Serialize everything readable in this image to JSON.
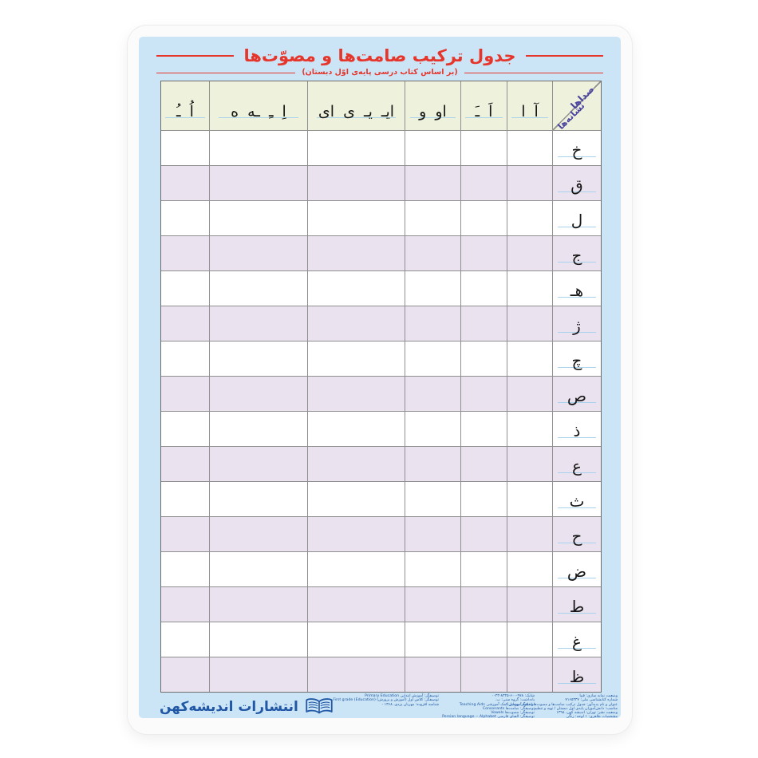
{
  "poster": {
    "title": "جدول ترکیب صامت‌ها و مصوّت‌ها",
    "subtitle": "(بر اساس کتاب درسی پایه‌ی اوّل دبستان)"
  },
  "table": {
    "corner": {
      "sounds": "صداها",
      "signs": "نشانه‌ها"
    },
    "vowel_headers": [
      "آ ا",
      "اَ ـَ",
      "او و",
      "ایـ یـ ی ای",
      "اِ ـِ ـه ه",
      "اُ ـُ"
    ],
    "consonants": [
      "خ",
      "ق",
      "ل",
      "ج",
      "هـ",
      "ژ",
      "چ",
      "ص",
      "ذ",
      "ع",
      "ث",
      "ح",
      "ض",
      "ط",
      "غ",
      "ظ"
    ]
  },
  "footer": {
    "catalog_right": [
      "وضعیت نمایه سازی: فیپا",
      "شماره کتابشناسی ملی: ۷۱۶۵۳۳۷",
      "عنوان و نام پدیدآور: جدول ترکیب صامت‌ها و مصوت‌ها (علاوه آموزشی)",
      "مناسب: دانش‌آموزان پایه‌ی اول دبستان / تهیه و تنظیم",
      "وضعیت نشر: تهران: اندیشه کهن، ۱۳۹۸",
      "مشخصات ظاهری: ۱ لوحه: رنگی"
    ],
    "catalog_middle": [
      "شابک: ۹۷۸-۶۰۰-۸۳۴۵-۲۳-۰",
      "یادداشت: گروه سنی: ب.",
      "توصیفگر: وسایل کمک آموزشی Teaching Aids",
      "توصیفگر: صامت‌ها Consonants",
      "توصیفگر: مصوت‌ها Vowels",
      "توصیفگر: الفبای فارسی Persian language -- Alphabet"
    ],
    "catalog_left": [
      "توصیفگر: آموزش ابتدایی Primary Education",
      "توصیفگر: کلاس اول (آموزش و پرورش) First grade (Education)",
      "شناسه افزوده: مهربان یزدی، ۱۳۶۸ -"
    ]
  },
  "publisher": {
    "name": "انتشارات اندیشه‌کهن",
    "icon": "open-book-icon"
  },
  "colors": {
    "accent_red": "#e6352b",
    "panel_blue": "#cbe5f6",
    "header_cream": "#eef1dc",
    "row_purple": "#ebe2ef",
    "grid_line": "#8f8f8f",
    "guide_line_blue": "#a9d3ec",
    "corner_text_purple": "#4b43a0",
    "footer_blue": "#2157a4"
  }
}
